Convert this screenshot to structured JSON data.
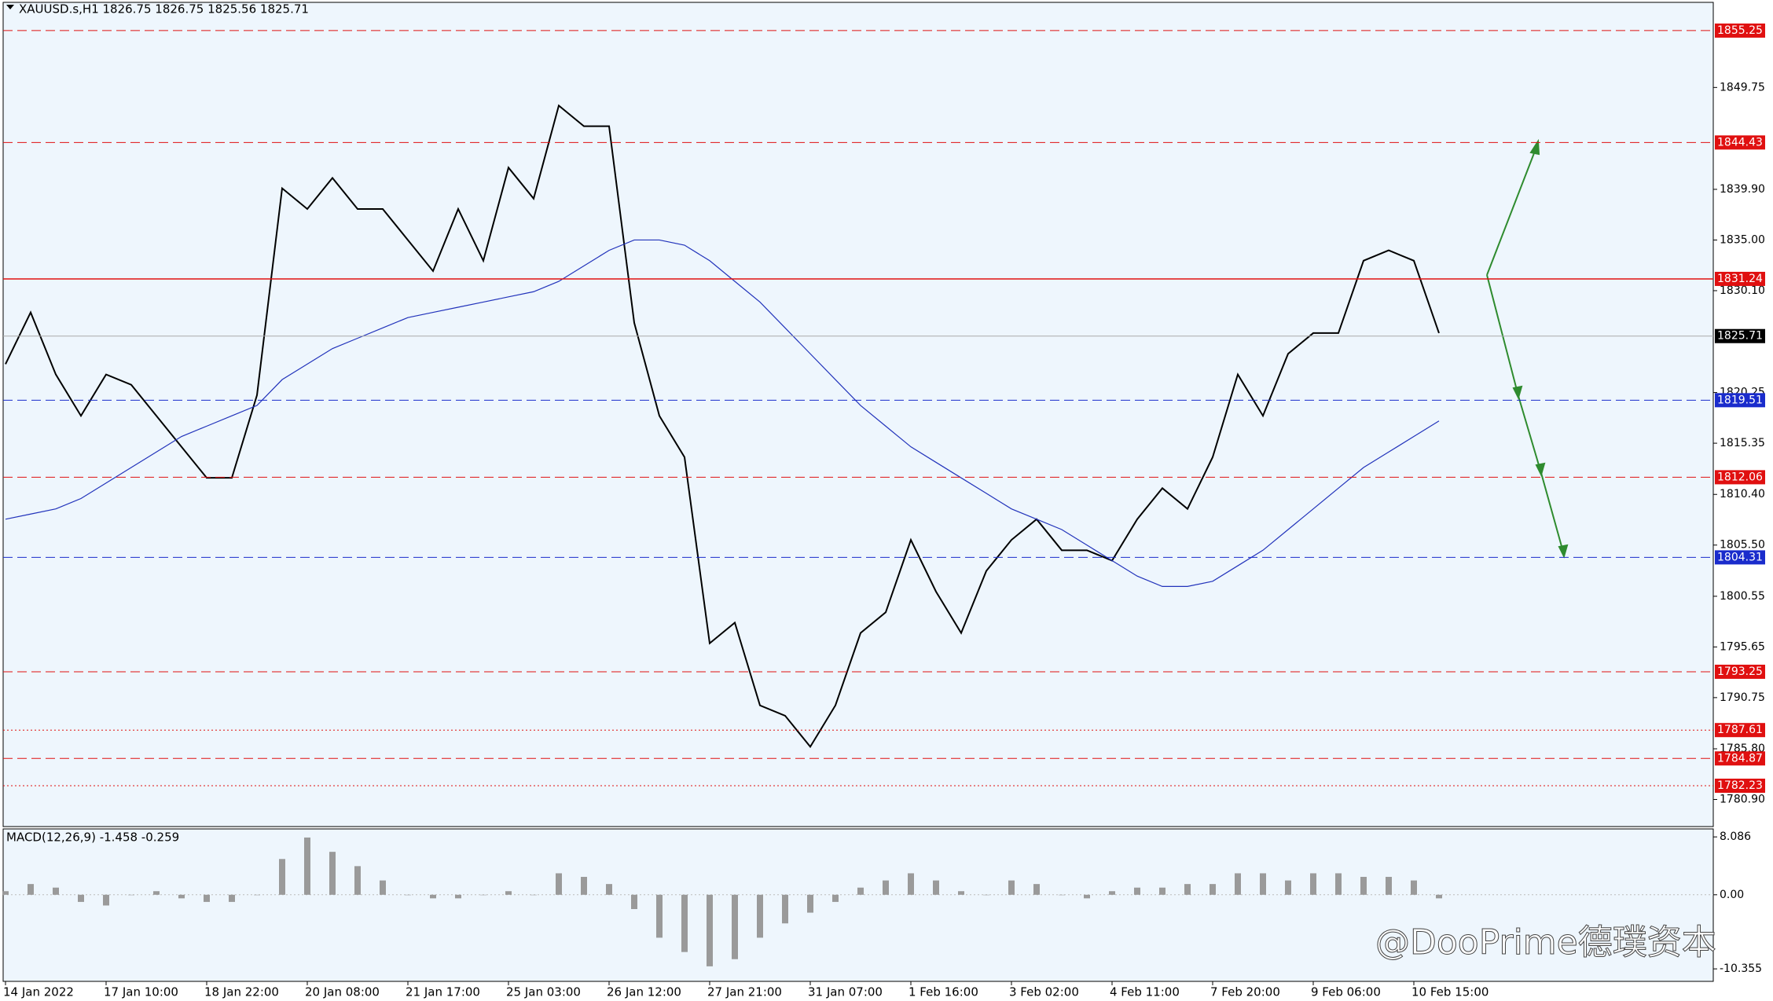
{
  "chart_data": [
    {
      "type": "line",
      "title": "XAUUSD.s,H1  1826.75 1826.75 1825.56 1825.71",
      "categories": [
        "14 Jan 2022",
        null,
        null,
        null,
        "17 Jan 10:00",
        null,
        null,
        null,
        "18 Jan 22:00",
        null,
        null,
        null,
        "20 Jan 08:00",
        null,
        null,
        null,
        "21 Jan 17:00",
        null,
        null,
        null,
        "25 Jan 03:00",
        null,
        null,
        null,
        "26 Jan 12:00",
        null,
        null,
        null,
        "27 Jan 21:00",
        null,
        null,
        null,
        "31 Jan 07:00",
        null,
        null,
        null,
        "1 Feb 16:00",
        null,
        null,
        null,
        "3 Feb 02:00",
        null,
        null,
        null,
        "4 Feb 11:00",
        null,
        null,
        null,
        "7 Feb 20:00",
        null,
        null,
        null,
        "9 Feb 06:00",
        null,
        null,
        null,
        "10 Feb 15:00",
        null
      ],
      "series": [
        {
          "color": "#000000",
          "values": [
            1823,
            1828,
            1822,
            1818,
            1822,
            1821,
            1818,
            1815,
            1812,
            1812,
            1820,
            1840,
            1838,
            1841,
            1838,
            1838,
            1835,
            1832,
            1838,
            1833,
            1842,
            1839,
            1848,
            1846,
            1846,
            1827,
            1818,
            1814,
            1796,
            1798,
            1790,
            1789,
            1786,
            1790,
            1797,
            1799,
            1806,
            1801,
            1797,
            1803,
            1806,
            1808,
            1805,
            1805,
            1804,
            1808,
            1811,
            1809,
            1814,
            1822,
            1818,
            1824,
            1826,
            1826,
            1833,
            1834,
            1833,
            1826
          ]
        },
        {
          "color": "#2233bb",
          "values": [
            1808,
            1808.5,
            1809,
            1810,
            1811.5,
            1813,
            1814.5,
            1816,
            1817,
            1818,
            1819,
            1821.5,
            1823,
            1824.5,
            1825.5,
            1826.5,
            1827.5,
            1828,
            1828.5,
            1829,
            1829.5,
            1830,
            1831,
            1832.5,
            1834,
            1835,
            1835,
            1834.5,
            1833,
            1831,
            1829,
            1826.5,
            1824,
            1821.5,
            1819,
            1817,
            1815,
            1813.5,
            1812,
            1810.5,
            1809,
            1808,
            1807,
            1805.5,
            1804,
            1802.5,
            1801.5,
            1801.5,
            1802,
            1803.5,
            1805,
            1807,
            1809,
            1811,
            1813,
            1814.5,
            1816,
            1817.5
          ]
        }
      ],
      "ylim": [
        1778.28,
        1857.98
      ],
      "yticks": [
        1849.75,
        {
          "value": 1839.9,
          "label": "1839.90"
        },
        {
          "value": 1835,
          "label": "1835.00"
        },
        {
          "value": 1830.1,
          "label": "1830.10"
        },
        1820.25,
        1815.35,
        {
          "value": 1810.4,
          "label": "1810.40"
        },
        {
          "value": 1805.5,
          "label": "1805.50"
        },
        1800.55,
        1795.65,
        1790.75,
        {
          "value": 1785.8,
          "label": "1785.80"
        },
        {
          "value": 1780.9,
          "label": "1780.90"
        }
      ],
      "levels": [
        {
          "value": 1855.25,
          "color": "#e01010",
          "style": "dashed"
        },
        {
          "value": 1844.43,
          "color": "#e01010",
          "style": "dashed"
        },
        {
          "value": 1831.24,
          "color": "#e01010",
          "style": "solid"
        },
        {
          "value": 1825.71,
          "color": "#000000",
          "style": "thin"
        },
        {
          "value": 1819.51,
          "color": "#1a2ccc",
          "style": "dashed"
        },
        {
          "value": 1812.06,
          "color": "#e01010",
          "style": "dashed"
        },
        {
          "value": 1804.31,
          "color": "#1a2ccc",
          "style": "dashed"
        },
        {
          "value": 1793.25,
          "color": "#e01010",
          "style": "dashed"
        },
        {
          "value": 1787.61,
          "color": "#e01010",
          "style": "dotted"
        },
        {
          "value": 1784.87,
          "color": "#e01010",
          "style": "dashed"
        },
        {
          "value": 1782.23,
          "color": "#e01010",
          "style": "dotted"
        }
      ]
    },
    {
      "type": "bar",
      "title": "MACD(12,26,9) -1.458 -0.259",
      "color": "#9a9a9a",
      "values": [
        0.5,
        1.5,
        1,
        -1,
        -1.5,
        0,
        0.5,
        -0.5,
        -1,
        -1,
        0,
        5,
        8,
        6,
        4,
        2,
        0,
        -0.5,
        -0.5,
        0,
        0.5,
        0,
        3,
        2.5,
        1.5,
        -2,
        -6,
        -8,
        -10,
        -9,
        -6,
        -4,
        -2.5,
        -1,
        1,
        2,
        3,
        2,
        0.5,
        0,
        2,
        1.5,
        0,
        -0.5,
        0.5,
        1,
        1,
        1.5,
        1.5,
        3,
        3,
        2,
        3,
        3,
        2.5,
        2.5,
        2,
        -0.5
      ],
      "ylim": [
        -12.1,
        9.2
      ],
      "yticks": [
        8.086,
        {
          "value": 0,
          "label": "0.00"
        },
        -10.355
      ]
    }
  ],
  "watermark": "@DooPrime德璞资本"
}
